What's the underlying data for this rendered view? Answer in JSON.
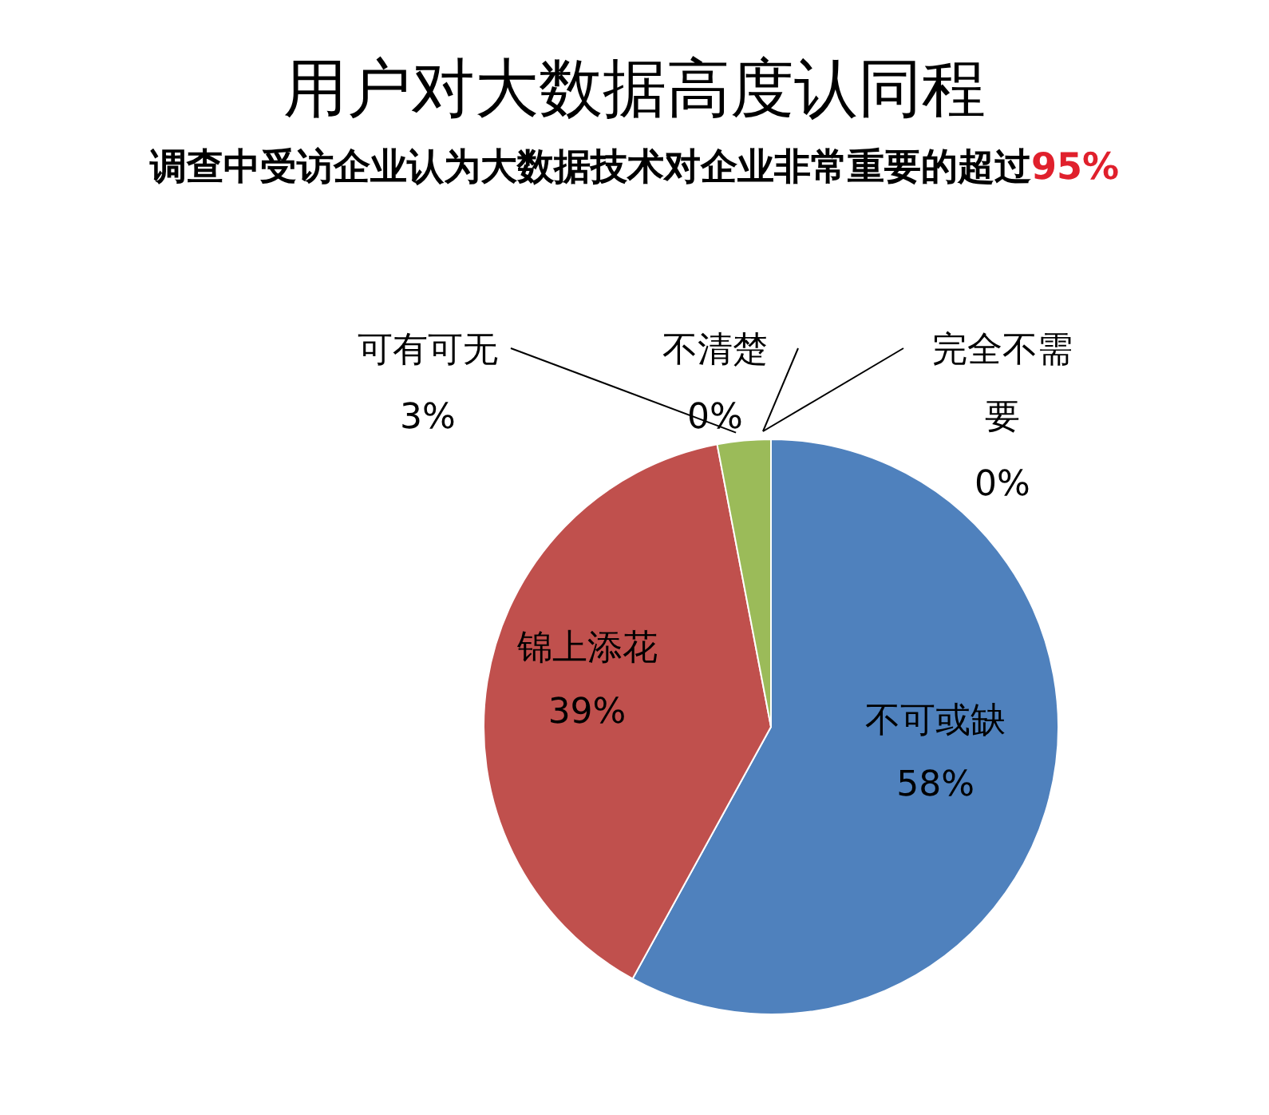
{
  "chart_data": {
    "type": "pie",
    "title": "用户对大数据高度认同程",
    "subtitle": "调查中受访企业认为大数据技术对企业非常重要的超过95%",
    "categories": [
      "不可或缺",
      "锦上添花",
      "可有可无",
      "不清楚",
      "完全不需要"
    ],
    "values": [
      58,
      39,
      3,
      0,
      0
    ],
    "colors": [
      "#4f81bd",
      "#c0504d",
      "#9bbb59",
      "#8064a2",
      "#4bacc6"
    ],
    "value_labels": [
      "58%",
      "39%",
      "3%",
      "0%",
      "0%"
    ]
  }
}
